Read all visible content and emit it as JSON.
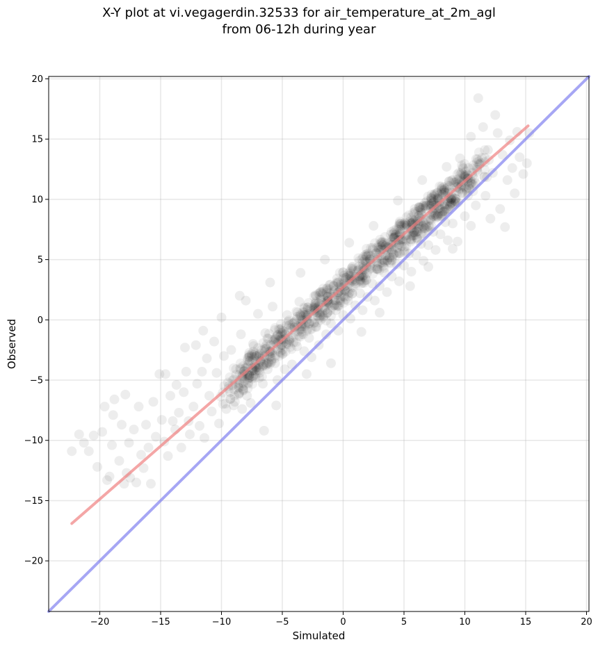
{
  "chart_data": {
    "type": "scatter",
    "title": "X-Y plot at vi.vegagerdin.32533 for air_temperature_at_2m_agl",
    "subtitle": "from 06-12h during year",
    "xlabel": "Simulated",
    "ylabel": "Observed",
    "xlim": [
      -24.2,
      20.2
    ],
    "ylim": [
      -24.2,
      20.2
    ],
    "xticks": [
      -20,
      -15,
      -10,
      -5,
      0,
      5,
      10,
      15,
      20
    ],
    "yticks": [
      -20,
      -15,
      -10,
      -5,
      0,
      5,
      10,
      15,
      20
    ],
    "xtick_labels": [
      "−20",
      "−15",
      "−10",
      "−5",
      "0",
      "5",
      "10",
      "15",
      "20"
    ],
    "ytick_labels": [
      "−20",
      "−15",
      "−10",
      "−5",
      "0",
      "5",
      "10",
      "15",
      "20"
    ],
    "grid": true,
    "point_color": "#000000",
    "point_alpha": 0.07,
    "regression_line": {
      "color": "#f08080",
      "x": [
        -22.3,
        15.2
      ],
      "y": [
        -16.9,
        16.1
      ]
    },
    "identity_line": {
      "color": "#8080f0",
      "x": [
        -24.2,
        20.2
      ],
      "y": [
        -24.2,
        20.2
      ]
    },
    "points": [
      [
        -22.3,
        -10.9
      ],
      [
        -21.7,
        -9.5
      ],
      [
        -21.3,
        -10.2
      ],
      [
        -20.9,
        -10.9
      ],
      [
        -20.5,
        -9.6
      ],
      [
        -20.2,
        -12.2
      ],
      [
        -19.8,
        -9.3
      ],
      [
        -19.6,
        -7.2
      ],
      [
        -19.4,
        -13.3
      ],
      [
        -19.2,
        -13.0
      ],
      [
        -19.0,
        -10.4
      ],
      [
        -18.9,
        -7.9
      ],
      [
        -18.8,
        -6.6
      ],
      [
        -18.4,
        -11.7
      ],
      [
        -18.2,
        -8.7
      ],
      [
        -18.0,
        -13.6
      ],
      [
        -17.9,
        -6.2
      ],
      [
        -17.8,
        -12.7
      ],
      [
        -17.6,
        -10.2
      ],
      [
        -17.5,
        -13.1
      ],
      [
        -17.2,
        -9.1
      ],
      [
        -17.0,
        -13.5
      ],
      [
        -16.8,
        -7.2
      ],
      [
        -16.6,
        -11.2
      ],
      [
        -16.4,
        -12.3
      ],
      [
        -16.2,
        -8.7
      ],
      [
        -16.0,
        -10.6
      ],
      [
        -15.8,
        -13.6
      ],
      [
        -15.6,
        -6.8
      ],
      [
        -15.4,
        -9.7
      ],
      [
        -15.1,
        -4.5
      ],
      [
        -14.9,
        -8.3
      ],
      [
        -14.7,
        -10.1
      ],
      [
        -14.6,
        -4.5
      ],
      [
        -14.4,
        -11.3
      ],
      [
        -14.2,
        -6.3
      ],
      [
        -14.0,
        -8.4
      ],
      [
        -13.8,
        -9.1
      ],
      [
        -13.7,
        -5.4
      ],
      [
        -13.5,
        -7.7
      ],
      [
        -13.3,
        -10.6
      ],
      [
        -13.1,
        -6.0
      ],
      [
        -12.9,
        -4.3
      ],
      [
        -12.7,
        -8.4
      ],
      [
        -12.6,
        -9.5
      ],
      [
        -12.3,
        -7.2
      ],
      [
        -12.1,
        -2.1
      ],
      [
        -12.0,
        -5.3
      ],
      [
        -11.8,
        -8.8
      ],
      [
        -11.6,
        -4.3
      ],
      [
        -11.4,
        -9.8
      ],
      [
        -11.2,
        -3.2
      ],
      [
        -11.0,
        -6.3
      ],
      [
        -10.8,
        -7.6
      ],
      [
        -10.6,
        -1.8
      ],
      [
        -10.4,
        -4.4
      ],
      [
        -10.2,
        -8.6
      ],
      [
        -10.0,
        0.2
      ],
      [
        -9.8,
        -3.0
      ],
      [
        -9.6,
        -7.4
      ],
      [
        -9.4,
        -5.5
      ],
      [
        -9.2,
        -2.5
      ],
      [
        -9.0,
        -7.1
      ],
      [
        -8.8,
        -4.1
      ],
      [
        -8.6,
        -6.2
      ],
      [
        -8.4,
        -1.2
      ],
      [
        -8.2,
        -5.8
      ],
      [
        -8.0,
        1.6
      ],
      [
        -7.8,
        -3.7
      ],
      [
        -7.6,
        -6.9
      ],
      [
        -7.4,
        -2.0
      ],
      [
        -7.2,
        -4.8
      ],
      [
        -7.0,
        0.5
      ],
      [
        -6.8,
        -3.4
      ],
      [
        -6.6,
        -5.3
      ],
      [
        -6.4,
        -1.1
      ],
      [
        -6.2,
        -4.1
      ],
      [
        -6.0,
        -2.6
      ],
      [
        -5.8,
        1.1
      ],
      [
        -5.6,
        -3.6
      ],
      [
        -5.4,
        -5.0
      ],
      [
        -5.2,
        -0.8
      ],
      [
        -5.0,
        -2.5
      ],
      [
        -4.8,
        -4.1
      ],
      [
        -4.6,
        0.4
      ],
      [
        -4.4,
        -1.7
      ],
      [
        -4.2,
        -3.7
      ],
      [
        -4.0,
        -0.6
      ],
      [
        -3.8,
        -2.2
      ],
      [
        -3.6,
        1.5
      ],
      [
        -3.4,
        -1.0
      ],
      [
        -3.2,
        -2.6
      ],
      [
        -3.0,
        0.2
      ],
      [
        -2.8,
        -1.5
      ],
      [
        -2.6,
        -3.1
      ],
      [
        -2.4,
        1.0
      ],
      [
        -2.2,
        -0.6
      ],
      [
        -2.0,
        -2.1
      ],
      [
        -1.8,
        2.3
      ],
      [
        -1.6,
        0.3
      ],
      [
        -1.4,
        -1.2
      ],
      [
        -1.2,
        1.4
      ],
      [
        -1.0,
        -0.3
      ],
      [
        -0.8,
        2.8
      ],
      [
        -0.6,
        0.8
      ],
      [
        -0.4,
        -0.9
      ],
      [
        -0.2,
        1.9
      ],
      [
        0.0,
        0.4
      ],
      [
        0.2,
        3.5
      ],
      [
        0.4,
        1.6
      ],
      [
        0.6,
        0.1
      ],
      [
        0.8,
        2.7
      ],
      [
        1.0,
        1.2
      ],
      [
        1.2,
        4.1
      ],
      [
        1.4,
        2.2
      ],
      [
        1.6,
        0.8
      ],
      [
        1.8,
        3.5
      ],
      [
        2.0,
        1.9
      ],
      [
        2.2,
        5.0
      ],
      [
        2.4,
        3.0
      ],
      [
        2.6,
        1.6
      ],
      [
        2.8,
        4.2
      ],
      [
        3.0,
        2.8
      ],
      [
        3.2,
        5.9
      ],
      [
        3.4,
        3.9
      ],
      [
        3.6,
        2.3
      ],
      [
        3.8,
        5.2
      ],
      [
        4.0,
        3.6
      ],
      [
        4.2,
        6.8
      ],
      [
        4.4,
        4.6
      ],
      [
        4.6,
        3.2
      ],
      [
        4.8,
        6.1
      ],
      [
        5.0,
        4.5
      ],
      [
        5.2,
        7.7
      ],
      [
        5.4,
        5.5
      ],
      [
        5.6,
        4.0
      ],
      [
        5.8,
        7.0
      ],
      [
        6.0,
        5.4
      ],
      [
        6.2,
        8.6
      ],
      [
        6.4,
        6.3
      ],
      [
        6.6,
        4.9
      ],
      [
        6.8,
        7.8
      ],
      [
        7.0,
        6.2
      ],
      [
        7.2,
        9.5
      ],
      [
        7.4,
        7.3
      ],
      [
        7.6,
        5.8
      ],
      [
        7.8,
        8.7
      ],
      [
        8.0,
        7.1
      ],
      [
        8.2,
        10.4
      ],
      [
        8.4,
        8.1
      ],
      [
        8.6,
        6.6
      ],
      [
        8.8,
        9.6
      ],
      [
        9.0,
        8.0
      ],
      [
        9.2,
        11.4
      ],
      [
        9.4,
        6.5
      ],
      [
        9.6,
        13.4
      ],
      [
        9.8,
        10.5
      ],
      [
        10.0,
        8.6
      ],
      [
        10.3,
        12.6
      ],
      [
        10.5,
        15.2
      ],
      [
        10.7,
        11.2
      ],
      [
        10.9,
        9.5
      ],
      [
        11.1,
        18.4
      ],
      [
        11.3,
        13.0
      ],
      [
        11.5,
        16.0
      ],
      [
        11.7,
        10.3
      ],
      [
        11.9,
        14.1
      ],
      [
        12.1,
        8.4
      ],
      [
        12.3,
        12.2
      ],
      [
        12.5,
        17.0
      ],
      [
        12.7,
        15.5
      ],
      [
        12.9,
        9.2
      ],
      [
        13.1,
        13.7
      ],
      [
        13.3,
        7.7
      ],
      [
        13.5,
        11.6
      ],
      [
        13.7,
        14.9
      ],
      [
        13.9,
        12.6
      ],
      [
        14.1,
        10.5
      ],
      [
        14.3,
        15.6
      ],
      [
        14.5,
        13.5
      ],
      [
        14.8,
        12.1
      ],
      [
        15.1,
        13.0
      ],
      [
        15.3,
        15.5
      ],
      [
        -6.5,
        -9.2
      ],
      [
        -5.5,
        -7.1
      ],
      [
        -3.0,
        -4.5
      ],
      [
        -1.0,
        -3.6
      ],
      [
        1.5,
        -1.0
      ],
      [
        3.0,
        0.6
      ],
      [
        5.5,
        2.8
      ],
      [
        7.0,
        4.4
      ],
      [
        9.0,
        5.9
      ],
      [
        10.5,
        7.8
      ],
      [
        -13.0,
        -2.3
      ],
      [
        -11.5,
        -0.9
      ],
      [
        -8.5,
        2.0
      ],
      [
        -6.0,
        3.1
      ],
      [
        -3.5,
        3.9
      ],
      [
        -1.5,
        5.0
      ],
      [
        0.5,
        6.4
      ],
      [
        2.5,
        7.8
      ],
      [
        4.5,
        9.9
      ],
      [
        6.5,
        11.6
      ],
      [
        8.5,
        12.7
      ],
      [
        -9.3,
        -6.0
      ],
      [
        -8.9,
        -6.8
      ],
      [
        -8.6,
        -5.6
      ],
      [
        -8.3,
        -7.4
      ],
      [
        -7.9,
        -6.3
      ]
    ]
  }
}
